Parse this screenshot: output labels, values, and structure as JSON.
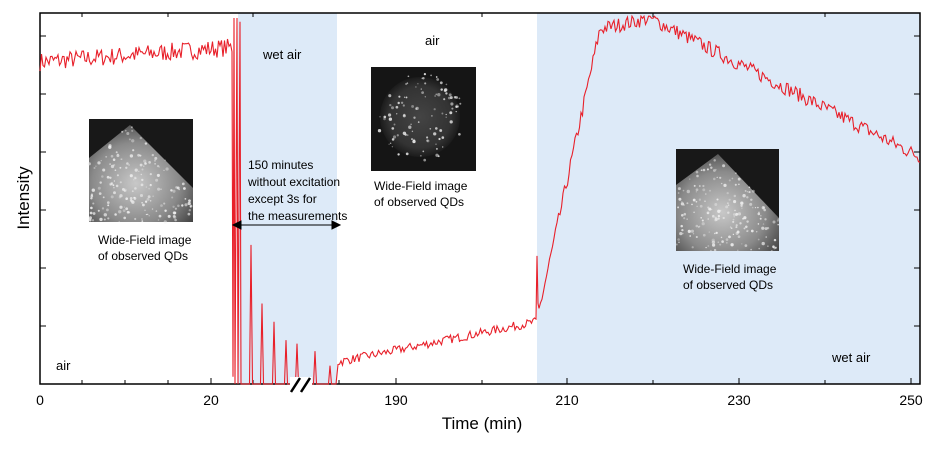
{
  "chart_data": {
    "type": "line",
    "title": "",
    "xlabel": "Time (min)",
    "ylabel": "Intensity",
    "x_ticks": [
      "0",
      "20",
      "190",
      "210",
      "230",
      "250"
    ],
    "axis_break": "between 30 and 180 min",
    "series_color": "#e8202a",
    "wet_air_color": "#ddeaf8",
    "region_labels": {
      "air_left": "air",
      "wet_air_middle": "wet air",
      "air_middle": "air",
      "wet_air_right": "wet air"
    },
    "annotations": {
      "excitation_note": [
        "150 minutes",
        "without excitation",
        "except 3s for",
        "the measurements"
      ],
      "image_caption": [
        "Wide-Field image",
        "of observed QDs"
      ]
    },
    "approx_levels": {
      "air_start_0_22min": 0.9,
      "wet_air_spikes_peak_first": 0.38,
      "air_180_206min_start": 0.06,
      "air_180_206min_end": 0.17,
      "wet_air_peak_at_218min": 1.0,
      "wet_air_end_at_250min": 0.62
    }
  }
}
